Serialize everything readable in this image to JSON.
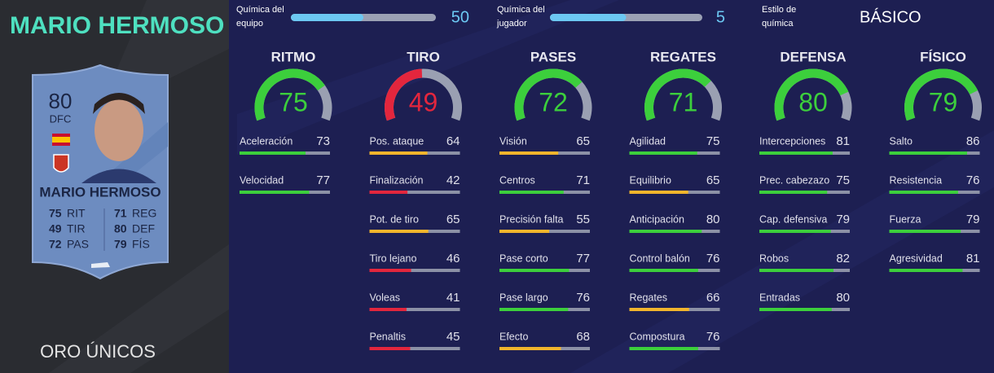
{
  "player": {
    "name": "MARIO HERMOSO",
    "version": "ORO ÚNICOS"
  },
  "card": {
    "rating": 80,
    "position": "DFC",
    "name": "MARIO HERMOSO",
    "stats": [
      {
        "value": 75,
        "label": "RIT"
      },
      {
        "value": 49,
        "label": "TIR"
      },
      {
        "value": 72,
        "label": "PAS"
      },
      {
        "value": 71,
        "label": "REG"
      },
      {
        "value": 80,
        "label": "DEF"
      },
      {
        "value": 79,
        "label": "FÍS"
      }
    ]
  },
  "chemistry": {
    "team": {
      "label": "Química del equipo",
      "value": 50
    },
    "player": {
      "label": "Química del jugador",
      "value": 5
    },
    "style": {
      "label": "Estilo de química",
      "value": "BÁSICO"
    }
  },
  "categories": [
    {
      "name": "RITMO",
      "value": 75,
      "stats": [
        {
          "name": "Aceleración",
          "value": 73
        },
        {
          "name": "Velocidad",
          "value": 77
        }
      ]
    },
    {
      "name": "TIRO",
      "value": 49,
      "stats": [
        {
          "name": "Pos. ataque",
          "value": 64
        },
        {
          "name": "Finalización",
          "value": 42
        },
        {
          "name": "Pot. de tiro",
          "value": 65
        },
        {
          "name": "Tiro lejano",
          "value": 46
        },
        {
          "name": "Voleas",
          "value": 41
        },
        {
          "name": "Penaltis",
          "value": 45
        }
      ]
    },
    {
      "name": "PASES",
      "value": 72,
      "stats": [
        {
          "name": "Visión",
          "value": 65
        },
        {
          "name": "Centros",
          "value": 71
        },
        {
          "name": "Precisión falta",
          "value": 55
        },
        {
          "name": "Pase corto",
          "value": 77
        },
        {
          "name": "Pase largo",
          "value": 76
        },
        {
          "name": "Efecto",
          "value": 68
        }
      ]
    },
    {
      "name": "REGATES",
      "value": 71,
      "stats": [
        {
          "name": "Agilidad",
          "value": 75
        },
        {
          "name": "Equilibrio",
          "value": 65
        },
        {
          "name": "Anticipación",
          "value": 80
        },
        {
          "name": "Control balón",
          "value": 76
        },
        {
          "name": "Regates",
          "value": 66
        },
        {
          "name": "Compostura",
          "value": 76
        }
      ]
    },
    {
      "name": "DEFENSA",
      "value": 80,
      "stats": [
        {
          "name": "Intercepciones",
          "value": 81
        },
        {
          "name": "Prec. cabezazo",
          "value": 75
        },
        {
          "name": "Cap. defensiva",
          "value": 79
        },
        {
          "name": "Robos",
          "value": 82
        },
        {
          "name": "Entradas",
          "value": 80
        }
      ]
    },
    {
      "name": "FÍSICO",
      "value": 79,
      "stats": [
        {
          "name": "Salto",
          "value": 86
        },
        {
          "name": "Resistencia",
          "value": 76
        },
        {
          "name": "Fuerza",
          "value": 79
        },
        {
          "name": "Agresividad",
          "value": 81
        }
      ]
    }
  ]
}
